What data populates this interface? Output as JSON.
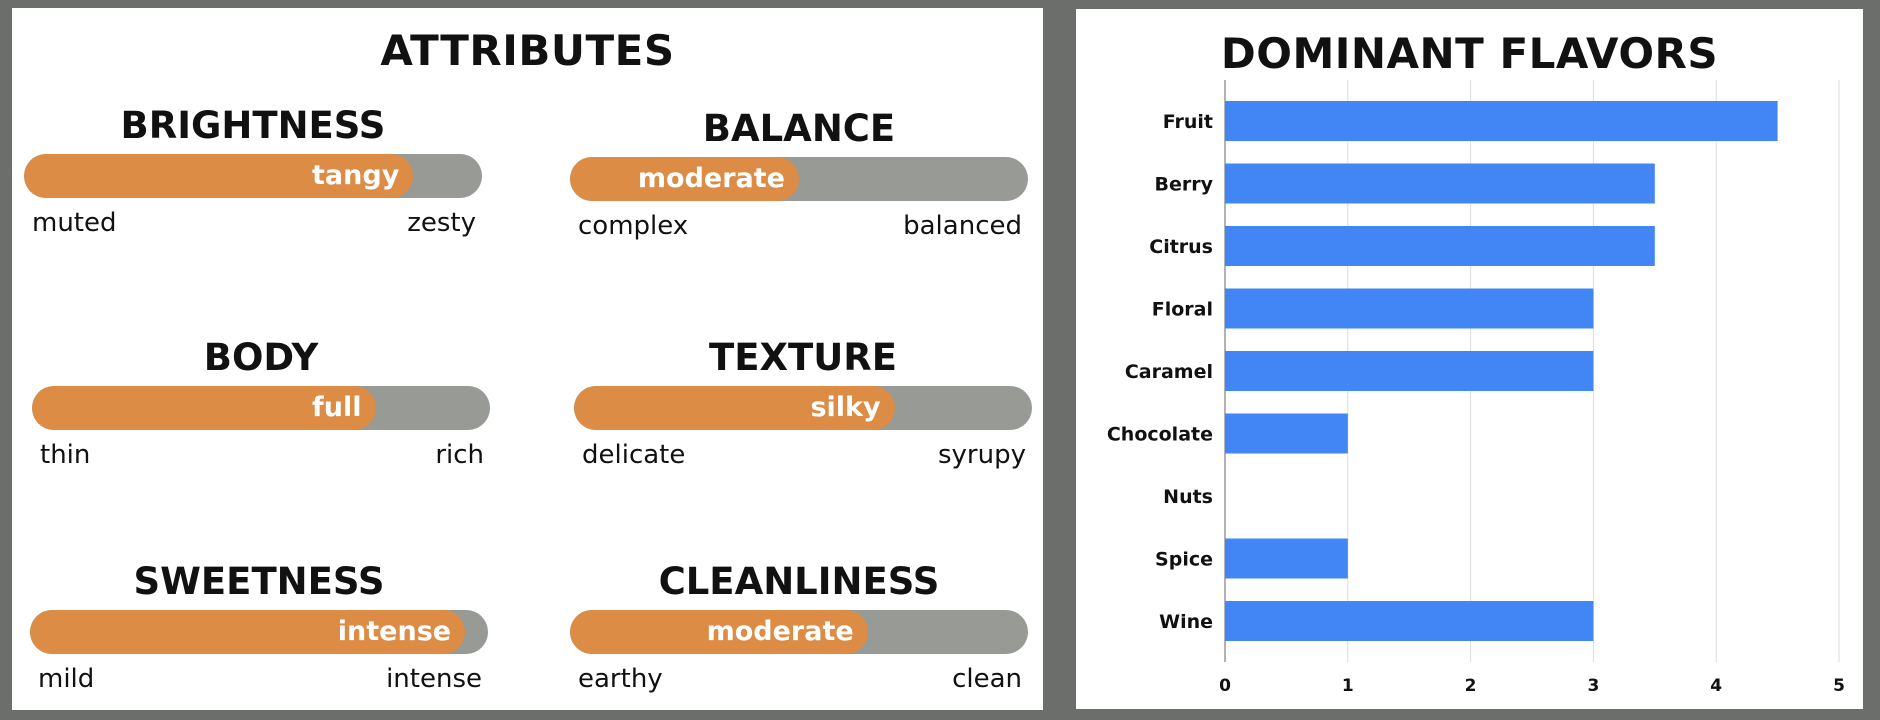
{
  "attributes": {
    "title": "ATTRIBUTES",
    "colors": {
      "fill": "#dc8c45",
      "track": "#989a95"
    },
    "items": [
      {
        "name": "BRIGHTNESS",
        "value_label": "tangy",
        "level": 0.85,
        "low": "muted",
        "high": "zesty"
      },
      {
        "name": "BALANCE",
        "value_label": "moderate",
        "level": 0.5,
        "low": "complex",
        "high": "balanced"
      },
      {
        "name": "BODY",
        "value_label": "full",
        "level": 0.75,
        "low": "thin",
        "high": "rich"
      },
      {
        "name": "TEXTURE",
        "value_label": "silky",
        "level": 0.7,
        "low": "delicate",
        "high": "syrupy"
      },
      {
        "name": "SWEETNESS",
        "value_label": "intense",
        "level": 0.95,
        "low": "mild",
        "high": "intense"
      },
      {
        "name": "CLEANLINESS",
        "value_label": "moderate",
        "level": 0.65,
        "low": "earthy",
        "high": "clean"
      }
    ]
  },
  "chart_data": {
    "type": "bar",
    "orientation": "horizontal",
    "title": "DOMINANT FLAVORS",
    "categories": [
      "Fruit",
      "Berry",
      "Citrus",
      "Floral",
      "Caramel",
      "Chocolate",
      "Nuts",
      "Spice",
      "Wine"
    ],
    "values": [
      4.5,
      3.5,
      3.5,
      3,
      3,
      1,
      0,
      1,
      3
    ],
    "xlim": [
      0,
      5
    ],
    "xticks": [
      "0",
      "1",
      "2",
      "3",
      "4",
      "5"
    ],
    "xlabel": "",
    "ylabel": "",
    "grid": true,
    "color": "#4285f4"
  }
}
